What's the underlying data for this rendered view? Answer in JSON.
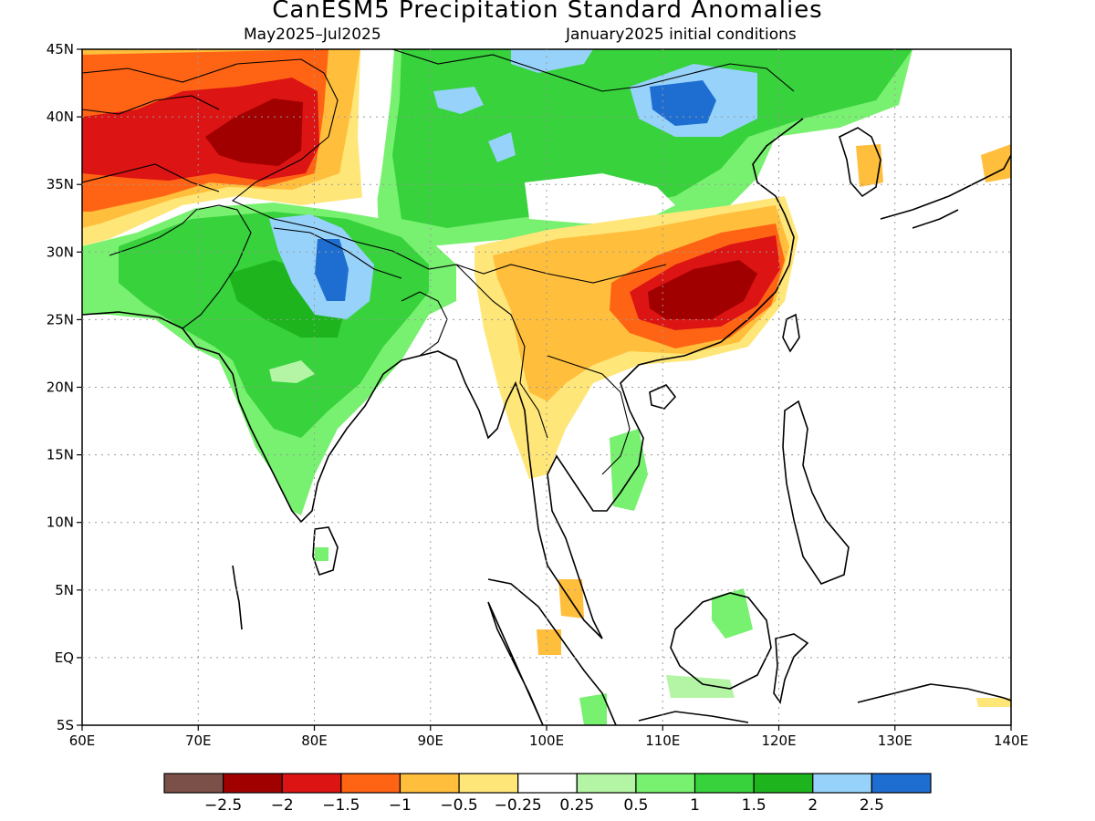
{
  "title": "CanESM5 Precipitation Standard Anomalies",
  "subtitle_left": "May2025–Jul2025",
  "subtitle_right": "January2025 initial conditions",
  "lon_labels": [
    "60E",
    "70E",
    "80E",
    "90E",
    "100E",
    "110E",
    "120E",
    "130E",
    "140E"
  ],
  "lon_values": [
    60,
    70,
    80,
    90,
    100,
    110,
    120,
    130,
    140
  ],
  "lat_labels": [
    "45N",
    "40N",
    "35N",
    "30N",
    "25N",
    "20N",
    "15N",
    "10N",
    "5N",
    "EQ",
    "5S"
  ],
  "lat_values": [
    45,
    40,
    35,
    30,
    25,
    20,
    15,
    10,
    5,
    0,
    -5
  ],
  "colorbar": {
    "colors": [
      "#7b5048",
      "#a00000",
      "#dc1414",
      "#ff6414",
      "#ffbe3c",
      "#ffe678",
      "#ffffff",
      "#b4f5a5",
      "#78f070",
      "#37d23c",
      "#1eb41e",
      "#96d2fa",
      "#1e6ed2"
    ],
    "labels": [
      "−2.5",
      "−2",
      "−1.5",
      "−1",
      "−0.5",
      "−0.25",
      "0.25",
      "0.5",
      "1",
      "1.5",
      "2",
      "2.5"
    ]
  },
  "anomaly_regions": [
    {
      "name": "central-asia-dry",
      "color": "#ff6414",
      "lon": [
        60,
        87
      ],
      "lat": [
        32.5,
        45
      ]
    },
    {
      "name": "tibet-west-very-dry",
      "color": "#dc1414",
      "lon": [
        66,
        84
      ],
      "lat": [
        35,
        42
      ]
    },
    {
      "name": "karakoram-extreme-dry",
      "color": "#a00000",
      "lon": [
        74,
        80
      ],
      "lat": [
        36,
        40
      ]
    },
    {
      "name": "mongolia-wet",
      "color": "#37d23c",
      "lon": [
        87,
        127
      ],
      "lat": [
        35,
        45
      ]
    },
    {
      "name": "india-wet",
      "color": "#37d23c",
      "lon": [
        60,
        93
      ],
      "lat": [
        10,
        33
      ]
    },
    {
      "name": "himalaya-very-wet",
      "color": "#96d2fa",
      "lon": [
        79,
        87
      ],
      "lat": [
        25,
        31
      ]
    },
    {
      "name": "nepal-extreme-wet",
      "color": "#1e6ed2",
      "lon": [
        81,
        83
      ],
      "lat": [
        26,
        29
      ]
    },
    {
      "name": "south-china-dry",
      "color": "#ffbe3c",
      "lon": [
        96,
        123
      ],
      "lat": [
        13,
        32
      ]
    },
    {
      "name": "southeast-china-very-dry",
      "color": "#dc1414",
      "lon": [
        108,
        120
      ],
      "lat": [
        24,
        30
      ]
    },
    {
      "name": "southeast-china-extreme-dry",
      "color": "#a00000",
      "lon": [
        111,
        118
      ],
      "lat": [
        25,
        29
      ]
    }
  ]
}
